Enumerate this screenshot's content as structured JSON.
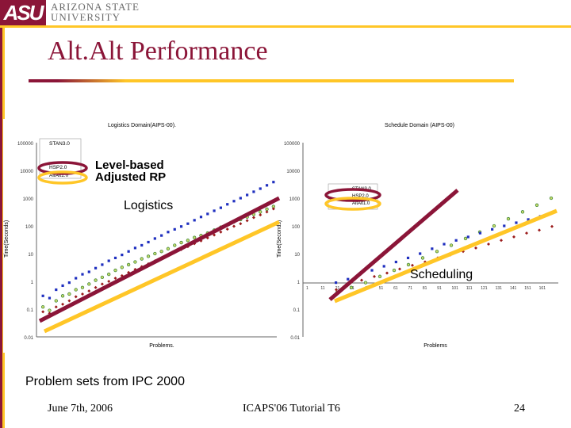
{
  "header": {
    "logo_text": "ASU",
    "university_line1": "Arizona State",
    "university_line2": "University"
  },
  "slide": {
    "title": "Alt.Alt Performance",
    "caption": "Problem sets from IPC 2000"
  },
  "footer": {
    "date": "June 7th, 2006",
    "event": "ICAPS'06 Tutorial T6",
    "page": "24"
  },
  "colors": {
    "maroon": "#8b1538",
    "gold": "#ffc627"
  },
  "chart_data": [
    {
      "type": "scatter",
      "title": "Logistics Domain(AIPS-00).",
      "xlabel": "Problems.",
      "ylabel": "Time(Seconds)",
      "y_scale": "log",
      "ylim": [
        0.01,
        100000
      ],
      "y_ticks": [
        "100000",
        "10000",
        "1000",
        "100",
        "10",
        "1",
        "0.1",
        "0.01"
      ],
      "legend": [
        "STAN3.0",
        "HSP2.0",
        "AltAlt1.0"
      ],
      "annotations": [
        "Level-based",
        "Adjusted RP",
        "Logistics"
      ],
      "series": [
        {
          "name": "STAN3.0",
          "values": [
            0.12,
            0.09,
            0.2,
            0.3,
            0.35,
            0.5,
            0.6,
            0.8,
            1.1,
            1.4,
            1.8,
            2.5,
            3.2,
            4,
            5,
            6.5,
            8,
            10,
            12,
            15,
            20,
            25,
            30,
            38,
            45,
            55,
            70,
            90,
            110,
            140,
            170,
            210,
            260,
            320,
            400,
            500
          ]
        },
        {
          "name": "HSP2.0",
          "values": [
            0.3,
            0.25,
            0.5,
            0.7,
            0.9,
            1.3,
            1.8,
            2.2,
            3,
            4,
            5.5,
            7,
            9,
            12,
            16,
            20,
            26,
            35,
            45,
            60,
            75,
            95,
            120,
            160,
            210,
            270,
            350,
            450,
            600,
            780,
            1000,
            1300,
            1700,
            2200,
            2900,
            3800
          ]
        },
        {
          "name": "AltAlt1.0",
          "values": [
            0.08,
            0.07,
            0.12,
            0.15,
            0.2,
            0.28,
            0.35,
            0.45,
            0.6,
            0.8,
            1,
            1.3,
            1.6,
            2.1,
            2.7,
            3.4,
            4.3,
            5.5,
            7,
            9,
            11,
            14,
            18,
            23,
            29,
            37,
            47,
            60,
            76,
            97,
            120,
            155,
            200,
            250,
            320,
            410
          ]
        }
      ]
    },
    {
      "type": "scatter",
      "title": "Schedule Domain (AIPS-00)",
      "xlabel": "Problems",
      "ylabel": "Time(Seconds)",
      "y_scale": "log",
      "ylim": [
        0.01,
        100000
      ],
      "y_ticks": [
        "100000",
        "10000",
        "1000",
        "100",
        "10",
        "1",
        "0.1",
        "0.01"
      ],
      "x_ticks": [
        "1",
        "11",
        "21",
        "31",
        "41",
        "51",
        "61",
        "71",
        "81",
        "91",
        "101",
        "111",
        "121",
        "131",
        "141",
        "151",
        "161"
      ],
      "legend": [
        "STAN3.0",
        "HSP2.0",
        "AltAlt1.0"
      ],
      "annotations": [
        "Scheduling"
      ],
      "series": [
        {
          "name": "STAN3.0",
          "values": [
            0.4,
            0.6,
            0.9,
            1.5,
            2.5,
            4,
            7,
            12,
            20,
            35,
            60,
            100,
            180,
            320,
            560,
            1000
          ]
        },
        {
          "name": "HSP2.0",
          "values": [
            0.9,
            1.2,
            1.8,
            2.5,
            3.5,
            5,
            7,
            10,
            15,
            22,
            30,
            40,
            55,
            75,
            100,
            130,
            170,
            220,
            300
          ]
        },
        {
          "name": "AltAlt1.0",
          "values": [
            0.5,
            0.8,
            1.1,
            1.5,
            2,
            2.8,
            3.8,
            5,
            7,
            9,
            12,
            16,
            22,
            30,
            40,
            55,
            70,
            95
          ]
        }
      ]
    }
  ]
}
